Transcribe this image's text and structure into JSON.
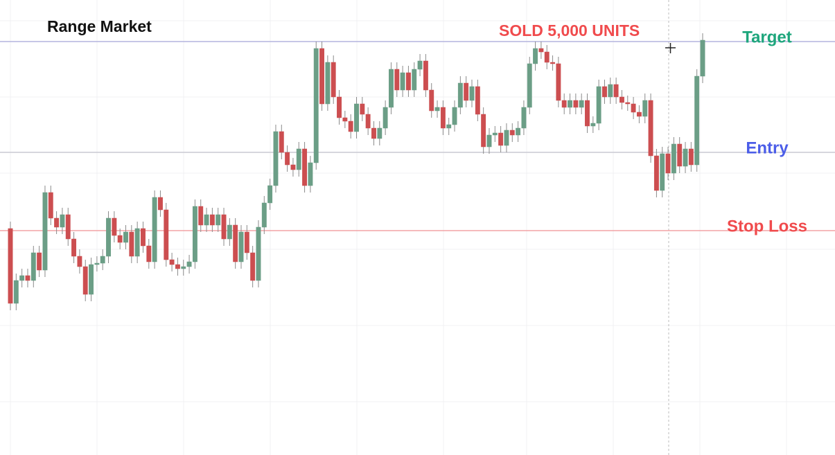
{
  "chart_data": {
    "type": "candlestick",
    "title": "Range Market",
    "annotation": "SOLD 5,000 UNITS",
    "up_color": "#6b9e86",
    "down_color": "#cc4e50",
    "ylim": [
      0,
      657
    ],
    "open": [
      327,
      219,
      252,
      259,
      252,
      292,
      267,
      379,
      342,
      329,
      347,
      312,
      287,
      272,
      232,
      275,
      277,
      287,
      342,
      317,
      307,
      322,
      287,
      327,
      302,
      279,
      372,
      354,
      282,
      275,
      269,
      272,
      279,
      359,
      332,
      347,
      332,
      347,
      312,
      332,
      279,
      322,
      292,
      252,
      329,
      364,
      389,
      467,
      437,
      419,
      412,
      442,
      389,
      422,
      587,
      507,
      567,
      517,
      487,
      482,
      467,
      507,
      492,
      472,
      457,
      472,
      502,
      557,
      527,
      552,
      527,
      557,
      569,
      527,
      497,
      502,
      472,
      477,
      502,
      537,
      512,
      532,
      492,
      445,
      462,
      465,
      447,
      469,
      462,
      472,
      502,
      565,
      587,
      582,
      567,
      565,
      512,
      502,
      512,
      502,
      512,
      475,
      479,
      532,
      517,
      535,
      517,
      509,
      507,
      495,
      489,
      512,
      432,
      382,
      435,
      407,
      449,
      417,
      442,
      419,
      547
    ],
    "high": [
      337,
      262,
      269,
      269,
      302,
      302,
      389,
      389,
      352,
      357,
      357,
      322,
      297,
      282,
      285,
      287,
      297,
      352,
      352,
      327,
      332,
      332,
      337,
      337,
      312,
      382,
      382,
      364,
      292,
      285,
      282,
      289,
      369,
      369,
      357,
      357,
      357,
      357,
      342,
      342,
      332,
      332,
      302,
      339,
      374,
      399,
      477,
      477,
      447,
      429,
      452,
      452,
      432,
      597,
      597,
      577,
      577,
      527,
      497,
      492,
      517,
      517,
      502,
      482,
      482,
      512,
      567,
      567,
      562,
      562,
      567,
      579,
      579,
      537,
      512,
      512,
      487,
      512,
      547,
      547,
      542,
      542,
      502,
      472,
      475,
      475,
      479,
      479,
      482,
      512,
      575,
      597,
      597,
      592,
      577,
      575,
      522,
      522,
      522,
      522,
      522,
      489,
      542,
      542,
      545,
      545,
      527,
      519,
      517,
      505,
      522,
      522,
      442,
      445,
      445,
      459,
      459,
      452,
      452,
      557,
      609
    ],
    "low": [
      209,
      209,
      242,
      242,
      242,
      257,
      257,
      332,
      319,
      319,
      302,
      277,
      262,
      222,
      222,
      265,
      267,
      277,
      307,
      297,
      297,
      277,
      277,
      292,
      269,
      269,
      344,
      272,
      265,
      259,
      259,
      262,
      269,
      322,
      322,
      322,
      322,
      302,
      302,
      269,
      269,
      282,
      242,
      242,
      319,
      354,
      379,
      427,
      409,
      402,
      402,
      379,
      379,
      412,
      497,
      497,
      507,
      477,
      472,
      457,
      457,
      482,
      462,
      447,
      447,
      462,
      492,
      517,
      517,
      517,
      517,
      547,
      517,
      487,
      487,
      462,
      462,
      467,
      492,
      502,
      502,
      482,
      435,
      435,
      452,
      437,
      437,
      452,
      452,
      462,
      492,
      555,
      572,
      557,
      555,
      502,
      492,
      492,
      492,
      492,
      465,
      465,
      469,
      507,
      507,
      507,
      499,
      497,
      485,
      479,
      479,
      422,
      372,
      372,
      397,
      397,
      407,
      407,
      409,
      409,
      537
    ],
    "close": [
      219,
      252,
      259,
      252,
      292,
      267,
      379,
      342,
      329,
      347,
      312,
      287,
      272,
      232,
      275,
      277,
      287,
      342,
      317,
      307,
      322,
      287,
      327,
      302,
      279,
      372,
      354,
      282,
      275,
      269,
      272,
      279,
      359,
      332,
      347,
      332,
      347,
      312,
      332,
      279,
      322,
      292,
      252,
      329,
      364,
      389,
      467,
      437,
      419,
      412,
      442,
      389,
      422,
      587,
      507,
      567,
      517,
      487,
      482,
      467,
      507,
      492,
      472,
      457,
      472,
      502,
      557,
      527,
      552,
      527,
      557,
      569,
      527,
      497,
      502,
      472,
      477,
      502,
      537,
      512,
      532,
      492,
      445,
      462,
      465,
      447,
      469,
      462,
      472,
      502,
      565,
      587,
      582,
      567,
      565,
      512,
      502,
      512,
      502,
      512,
      475,
      479,
      532,
      517,
      535,
      517,
      509,
      507,
      495,
      489,
      512,
      432,
      382,
      435,
      407,
      449,
      417,
      442,
      419,
      547,
      599
    ],
    "levels": [
      {
        "label": "Target",
        "value": 597,
        "color": "#b4b4de",
        "label_color": "#1ea67c"
      },
      {
        "label": "Entry",
        "value": 437,
        "color": "#c9c9d2",
        "label_color": "#4b5de8"
      },
      {
        "label": "Stop Loss",
        "value": 324,
        "color": "#f2a3a5",
        "label_color": "#f04b4d"
      }
    ]
  }
}
